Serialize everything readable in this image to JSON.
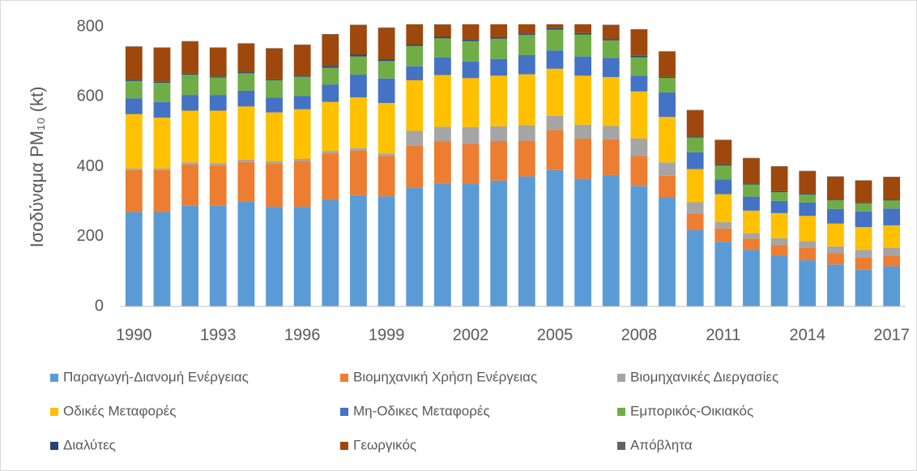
{
  "chart_data": {
    "type": "stacked_bar",
    "y_label": "Ισοδύναμα PM₁₀ (kt)",
    "categories": [
      "1990",
      null,
      null,
      "1993",
      null,
      null,
      "1996",
      null,
      null,
      "1999",
      null,
      null,
      "2002",
      null,
      null,
      "2005",
      null,
      null,
      "2008",
      null,
      null,
      "2011",
      null,
      null,
      "2014",
      null,
      null,
      "2017"
    ],
    "ylim": [
      0,
      800
    ],
    "yticks": [
      0,
      200,
      400,
      600,
      800
    ],
    "grid": false,
    "legend": "bottom",
    "series": [
      {
        "name": "Παραγωγή-Διανομή Ενέργειας",
        "color": "#5b9bd5",
        "values": [
          270,
          270,
          288,
          288,
          300,
          285,
          285,
          305,
          318,
          315,
          340,
          352,
          350,
          360,
          372,
          390,
          365,
          376,
          345,
          312,
          218,
          185,
          162,
          145,
          132,
          120,
          105,
          115
        ]
      },
      {
        "name": "Βιομηχανική Χρήση Ενέργειας",
        "color": "#ed7d31",
        "values": [
          120,
          120,
          118,
          115,
          113,
          123,
          130,
          133,
          128,
          115,
          120,
          120,
          115,
          113,
          102,
          115,
          115,
          102,
          85,
          62,
          48,
          38,
          32,
          30,
          35,
          32,
          35,
          30
        ]
      },
      {
        "name": "Βιομηχανικές Διεργασίες",
        "color": "#a5a5a5",
        "values": [
          5,
          5,
          6,
          7,
          7,
          7,
          7,
          7,
          7,
          7,
          42,
          42,
          48,
          42,
          45,
          40,
          40,
          38,
          50,
          38,
          32,
          18,
          15,
          20,
          20,
          20,
          22,
          22
        ]
      },
      {
        "name": "Οδικές Μεταφορές",
        "color": "#ffc000",
        "values": [
          155,
          145,
          148,
          150,
          152,
          140,
          142,
          140,
          145,
          145,
          145,
          148,
          140,
          145,
          145,
          135,
          140,
          140,
          135,
          130,
          95,
          80,
          65,
          72,
          72,
          65,
          65,
          65
        ]
      },
      {
        "name": "Μη-Οδικες Μεταφορές",
        "color": "#4472c4",
        "values": [
          45,
          45,
          45,
          45,
          45,
          42,
          38,
          50,
          65,
          70,
          40,
          50,
          48,
          48,
          55,
          52,
          55,
          55,
          45,
          70,
          48,
          42,
          40,
          35,
          38,
          42,
          45,
          48
        ]
      },
      {
        "name": "Εμπορικός-Οικιακός",
        "color": "#70ad47",
        "values": [
          50,
          55,
          58,
          50,
          50,
          50,
          55,
          48,
          52,
          50,
          58,
          55,
          58,
          58,
          58,
          60,
          63,
          50,
          53,
          42,
          42,
          40,
          35,
          25,
          23,
          25,
          23,
          23
        ]
      },
      {
        "name": "Διαλύτες",
        "color": "#264478",
        "values": [
          3,
          3,
          3,
          3,
          3,
          3,
          3,
          5,
          5,
          5,
          4,
          4,
          4,
          4,
          4,
          4,
          4,
          4,
          4,
          3,
          3,
          3,
          3,
          3,
          2,
          2,
          2,
          2
        ]
      },
      {
        "name": "Γεωργικός",
        "color": "#9e480e",
        "values": [
          95,
          97,
          92,
          82,
          82,
          88,
          88,
          90,
          85,
          90,
          60,
          35,
          45,
          40,
          30,
          15,
          30,
          40,
          75,
          72,
          75,
          70,
          72,
          70,
          65,
          65,
          63,
          65
        ]
      },
      {
        "name": "Απόβλητα",
        "color": "#636363",
        "values": [
          1,
          1,
          1,
          1,
          1,
          1,
          1,
          1,
          1,
          1,
          1,
          1,
          1,
          1,
          1,
          1,
          1,
          1,
          1,
          1,
          1,
          1,
          1,
          1,
          1,
          1,
          1,
          1
        ]
      }
    ]
  }
}
